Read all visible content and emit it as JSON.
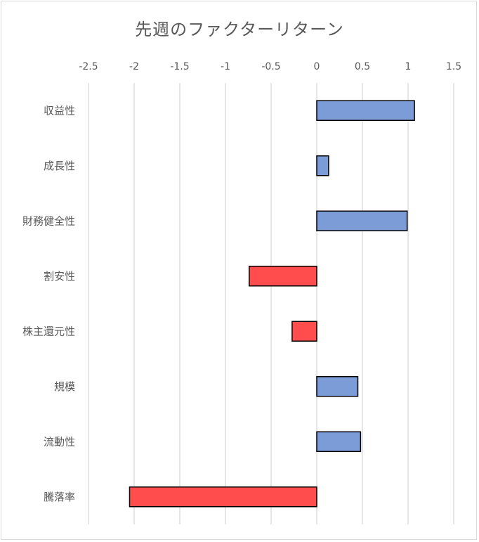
{
  "chart_data": {
    "type": "bar",
    "orientation": "horizontal",
    "title": "先週のファクターリターン",
    "xlabel": "",
    "ylabel": "",
    "xlim": [
      -2.5,
      1.5
    ],
    "xticks": [
      -2.5,
      -2,
      -1.5,
      -1,
      -0.5,
      0,
      0.5,
      1,
      1.5
    ],
    "xtick_labels": [
      "-2.5",
      "-2",
      "-1.5",
      "-1",
      "-0.5",
      "0",
      "0.5",
      "1",
      "1.5"
    ],
    "x_axis_position": "top",
    "grid": "vertical",
    "categories": [
      "収益性",
      "成長性",
      "財務健全性",
      "割安性",
      "株主還元性",
      "規模",
      "流動性",
      "騰落率"
    ],
    "values": [
      1.07,
      0.13,
      0.99,
      -0.74,
      -0.27,
      0.45,
      0.48,
      -2.05
    ],
    "positive_color": "#7b9cd6",
    "negative_color": "#ff4d4d",
    "bar_border_color": "#000000",
    "grid_color": "#d9d9d9"
  }
}
